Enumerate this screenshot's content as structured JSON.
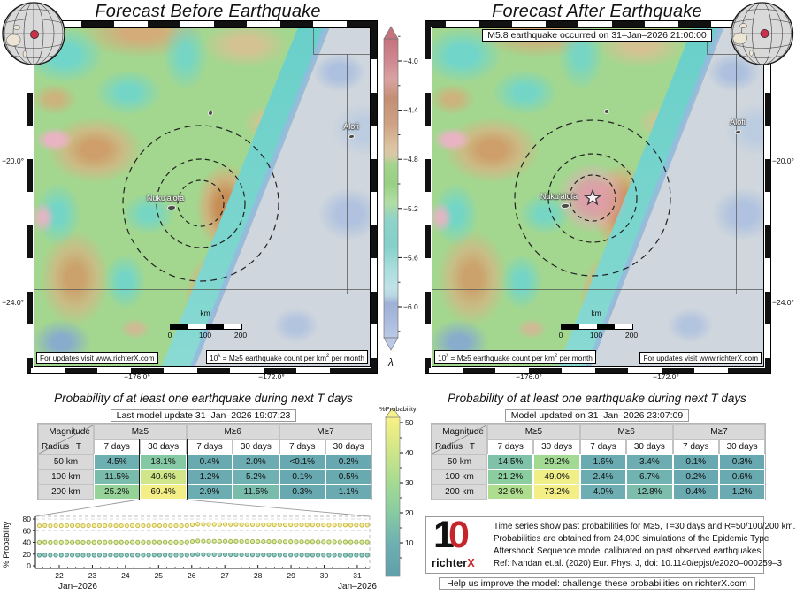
{
  "left": {
    "title": "Forecast Before Earthquake",
    "map": {
      "city": "Nuku'alofa",
      "island": "Alofi",
      "lat_labels": [
        "−20.0°",
        "−24.0°"
      ],
      "lon_labels": [
        "−176.0°",
        "−172.0°"
      ],
      "scalebar": {
        "unit": "km",
        "ticks": [
          "0",
          "100",
          "200"
        ]
      },
      "footer_updates": "For updates visit www.richterX.com",
      "eq_note_parts": {
        "base": "10",
        "sup1": "λ",
        "mid": " = M≥5 earthquake count per km",
        "sup2": "2",
        "end": " per month"
      }
    },
    "prob": {
      "title": "Probability of at least one earthquake during next T days",
      "subtitle": "Last model update 31–Jan–2026 19:07:23",
      "table": {
        "corner": {
          "magnitude": "Magnitude",
          "radius": "Radius",
          "t": "T"
        },
        "mag_groups": [
          "M≥5",
          "M≥6",
          "M≥7"
        ],
        "period_headers": [
          "7 days",
          "30 days",
          "7 days",
          "30 days",
          "7 days",
          "30 days"
        ],
        "rows": [
          {
            "radius": "50 km",
            "values": [
              "4.5%",
              "18.1%",
              "0.4%",
              "2.0%",
              "<0.1%",
              "0.2%"
            ]
          },
          {
            "radius": "100 km",
            "values": [
              "11.5%",
              "40.6%",
              "1.2%",
              "5.2%",
              "0.1%",
              "0.5%"
            ]
          },
          {
            "radius": "200 km",
            "values": [
              "25.2%",
              "69.4%",
              "2.9%",
              "11.5%",
              "0.3%",
              "1.1%"
            ]
          }
        ]
      }
    }
  },
  "right": {
    "title": "Forecast After Earthquake",
    "banner": "M5.8 earthquake occurred on 31–Jan–2026 21:00:00",
    "map": {
      "city": "Nuku'alofa",
      "island": "Alofi",
      "lat_labels": [
        "−20.0°",
        "−24.0°"
      ],
      "lon_labels": [
        "−176.0°",
        "−172.0°"
      ],
      "scalebar": {
        "unit": "km",
        "ticks": [
          "0",
          "100",
          "200"
        ]
      },
      "footer_updates": "For updates visit www.richterX.com",
      "eq_note_parts": {
        "base": "10",
        "sup1": "λ",
        "mid": " = M≥5 earthquake count per km",
        "sup2": "2",
        "end": " per month"
      }
    },
    "prob": {
      "title": "Probability of at least one earthquake during next T days",
      "subtitle": "Model updated on 31–Jan–2026 23:07:09",
      "table": {
        "corner": {
          "magnitude": "Magnitude",
          "radius": "Radius",
          "t": "T"
        },
        "mag_groups": [
          "M≥5",
          "M≥6",
          "M≥7"
        ],
        "period_headers": [
          "7 days",
          "30 days",
          "7 days",
          "30 days",
          "7 days",
          "30 days"
        ],
        "rows": [
          {
            "radius": "50 km",
            "values": [
              "14.5%",
              "29.2%",
              "1.6%",
              "3.4%",
              "0.1%",
              "0.3%"
            ]
          },
          {
            "radius": "100 km",
            "values": [
              "21.2%",
              "49.0%",
              "2.4%",
              "6.7%",
              "0.2%",
              "0.6%"
            ]
          },
          {
            "radius": "200 km",
            "values": [
              "32.6%",
              "73.2%",
              "4.0%",
              "12.8%",
              "0.4%",
              "1.2%"
            ]
          }
        ]
      }
    },
    "note": {
      "lines": [
        "Time series show past probabilities for M≥5, T=30 days and R=50/100/200 km.",
        "Probabilities are obtained from 24,000 simulations of the Epidemic Type",
        "Aftershock Sequence model calibrated on past observed earthquakes.",
        "Ref: Nandan et.al. (2020) Eur. Phys. J, doi: 10.1140/epjst/e2020–000259–3"
      ],
      "logo": {
        "digit1": "1",
        "digit0": "0",
        "brand": "richter",
        "brand_x": "X"
      }
    },
    "help": "Help us improve the model: challenge these probabilities on richterX.com"
  },
  "lambda_bar": {
    "label": "λ",
    "ticks": [
      "−4.0",
      "−4.4",
      "−4.8",
      "−5.2",
      "−5.6",
      "−6.0"
    ]
  },
  "prob_bar": {
    "label": "%Probability",
    "ticks": [
      "50",
      "40",
      "30",
      "20",
      "10"
    ]
  },
  "chart_data": {
    "type": "scatter",
    "title": "Past probabilities time series",
    "xlabel_left": "Jan–2026",
    "xlabel_right": "Jan–2026",
    "ylabel": "% Probability",
    "ylim": [
      0,
      80
    ],
    "yticks": [
      0,
      20,
      40,
      60,
      80
    ],
    "xticks": [
      22,
      23,
      24,
      25,
      26,
      27,
      28,
      29,
      30,
      31
    ],
    "x_start": 21.4,
    "x_step": 0.165,
    "series": [
      {
        "name": "M≥5, T=30 days, R=200 km",
        "stroke": "#c9b94e",
        "fill": "#f5efa2",
        "values": [
          68.6,
          68.9,
          68.5,
          68.8,
          68.6,
          69.0,
          68.7,
          68.9,
          68.5,
          68.8,
          68.6,
          68.9,
          68.7,
          69.0,
          68.6,
          68.8,
          68.5,
          68.9,
          68.7,
          68.8,
          68.6,
          69.0,
          68.7,
          68.9,
          68.6,
          68.8,
          68.5,
          68.9,
          70.2,
          71.3,
          71.0,
          70.8,
          70.9,
          70.6,
          70.8,
          70.5,
          70.7,
          70.4,
          70.6,
          70.3,
          70.5,
          70.2,
          70.4,
          70.1,
          70.3,
          70.0,
          70.2,
          69.9,
          70.1,
          69.8,
          70.0,
          69.7,
          69.9,
          69.6,
          69.8,
          69.5,
          69.7,
          69.4,
          69.6,
          69.4,
          69.5
        ]
      },
      {
        "name": "M≥5, T=30 days, R=100 km",
        "stroke": "#9cb650",
        "fill": "#dfe9a0",
        "values": [
          40.2,
          40.5,
          40.1,
          40.4,
          40.2,
          40.6,
          40.3,
          40.5,
          40.1,
          40.4,
          40.2,
          40.5,
          40.3,
          40.6,
          40.2,
          40.4,
          40.1,
          40.5,
          40.3,
          40.4,
          40.2,
          40.6,
          40.3,
          40.5,
          40.2,
          40.4,
          40.1,
          40.5,
          41.6,
          42.4,
          42.1,
          41.9,
          42.0,
          41.8,
          41.9,
          41.7,
          41.8,
          41.6,
          41.7,
          41.5,
          41.6,
          41.4,
          41.5,
          41.3,
          41.4,
          41.2,
          41.3,
          41.1,
          41.2,
          41.0,
          41.1,
          40.9,
          41.0,
          40.8,
          40.9,
          40.7,
          40.8,
          40.6,
          40.7,
          40.6,
          40.6
        ]
      },
      {
        "name": "M≥5, T=30 days, R=50 km",
        "stroke": "#54998f",
        "fill": "#9ccec2",
        "values": [
          18.1,
          18.3,
          18.0,
          18.2,
          18.1,
          18.4,
          18.2,
          18.3,
          18.0,
          18.2,
          18.1,
          18.3,
          18.2,
          18.4,
          18.1,
          18.2,
          18.0,
          18.3,
          18.2,
          18.2,
          18.1,
          18.4,
          18.2,
          18.3,
          18.1,
          18.2,
          18.0,
          18.3,
          19.0,
          19.4,
          19.2,
          19.1,
          19.1,
          19.0,
          19.0,
          18.9,
          18.9,
          18.8,
          18.8,
          18.7,
          18.7,
          18.6,
          18.6,
          18.5,
          18.5,
          18.4,
          18.4,
          18.3,
          18.3,
          18.2,
          18.3,
          18.2,
          18.2,
          18.1,
          18.2,
          18.1,
          18.1,
          18.0,
          18.1,
          18.1,
          18.1
        ]
      }
    ]
  },
  "colors": {
    "accent_red": "#c9314b",
    "prob_scale_low": "#68a8b0",
    "prob_scale_high": "#f3ef86"
  }
}
